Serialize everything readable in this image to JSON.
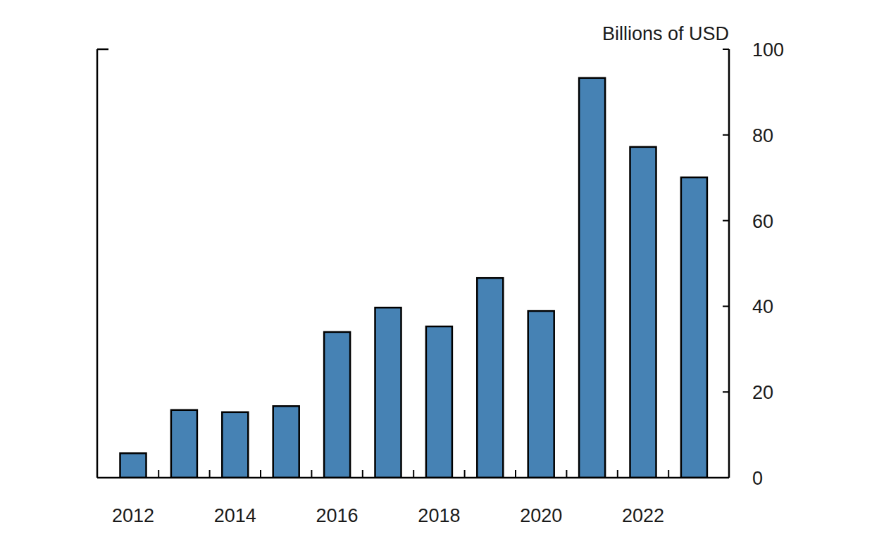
{
  "chart_data": {
    "type": "bar",
    "y_label": "Billions of USD",
    "categories": [
      "2012",
      null,
      "2014",
      null,
      "2016",
      null,
      "2018",
      null,
      "2020",
      null,
      "2022",
      null
    ],
    "values": [
      5.7,
      15.8,
      15.3,
      16.7,
      34.0,
      39.7,
      35.3,
      46.6,
      38.9,
      93.3,
      77.2,
      70.1
    ],
    "color": "#4682b4",
    "ylim": [
      0,
      100
    ],
    "yticks": [
      0,
      20,
      40,
      60,
      80,
      100
    ],
    "grid": false
  }
}
